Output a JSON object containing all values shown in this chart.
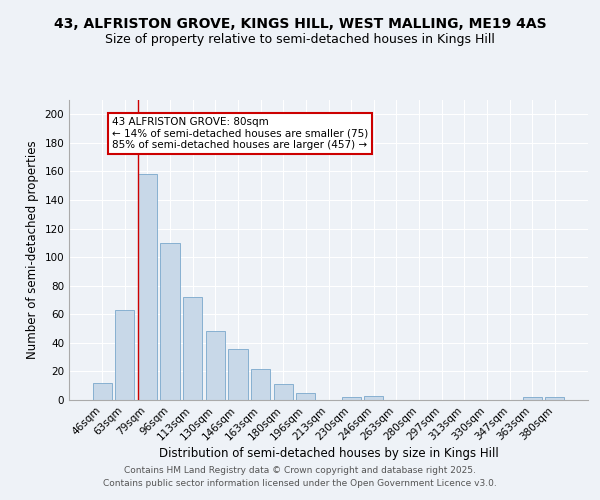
{
  "title_line1": "43, ALFRISTON GROVE, KINGS HILL, WEST MALLING, ME19 4AS",
  "title_line2": "Size of property relative to semi-detached houses in Kings Hill",
  "categories": [
    "46sqm",
    "63sqm",
    "79sqm",
    "96sqm",
    "113sqm",
    "130sqm",
    "146sqm",
    "163sqm",
    "180sqm",
    "196sqm",
    "213sqm",
    "230sqm",
    "246sqm",
    "263sqm",
    "280sqm",
    "297sqm",
    "313sqm",
    "330sqm",
    "347sqm",
    "363sqm",
    "380sqm"
  ],
  "values": [
    12,
    63,
    158,
    110,
    72,
    48,
    36,
    22,
    11,
    5,
    0,
    2,
    3,
    0,
    0,
    0,
    0,
    0,
    0,
    2,
    2
  ],
  "bar_color": "#c8d8e8",
  "bar_edge_color": "#7aa8cc",
  "red_line_index": 2,
  "ylabel": "Number of semi-detached properties",
  "xlabel": "Distribution of semi-detached houses by size in Kings Hill",
  "ylim": [
    0,
    210
  ],
  "yticks": [
    0,
    20,
    40,
    60,
    80,
    100,
    120,
    140,
    160,
    180,
    200
  ],
  "annotation_title": "43 ALFRISTON GROVE: 80sqm",
  "annotation_line1": "← 14% of semi-detached houses are smaller (75)",
  "annotation_line2": "85% of semi-detached houses are larger (457) →",
  "annotation_box_facecolor": "#ffffff",
  "annotation_box_edgecolor": "#cc0000",
  "footer_line1": "Contains HM Land Registry data © Crown copyright and database right 2025.",
  "footer_line2": "Contains public sector information licensed under the Open Government Licence v3.0.",
  "bg_color": "#eef2f7",
  "grid_color": "#ffffff",
  "title_fontsize": 10,
  "subtitle_fontsize": 9,
  "axis_label_fontsize": 8.5,
  "tick_fontsize": 7.5,
  "annotation_fontsize": 7.5,
  "footer_fontsize": 6.5
}
